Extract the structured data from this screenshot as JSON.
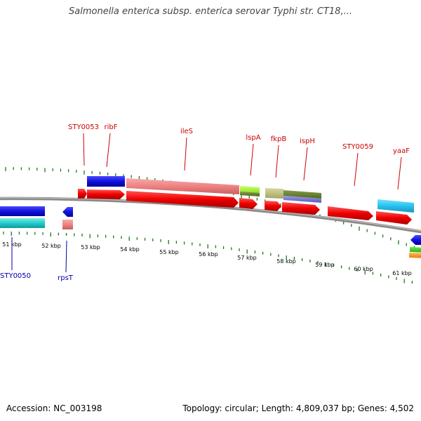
{
  "title": "Salmonella enterica subsp. enterica serovar Typhi str. CT18,...",
  "footer": {
    "accession": "Accession: NC_003198",
    "topology": "Topology: circular; Length: 4,809,037 bp; Genes: 4,502"
  },
  "colors": {
    "forward_cds": "#ee1111",
    "reverse_cds": "#1111dd",
    "backbone": "#888888",
    "tick": "#1a7a1a",
    "forward_label": "#cc0000",
    "reverse_label": "#0000aa"
  },
  "kbp_ticks": [
    "51 kbp",
    "52 kbp",
    "53 kbp",
    "54 kbp",
    "55 kbp",
    "56 kbp",
    "57 kbp",
    "58 kbp",
    "59 kbp",
    "60 kbp",
    "61 kbp"
  ],
  "forward_labels": [
    "STY0053",
    "ribF",
    "ileS",
    "lspA",
    "fkpB",
    "ispH",
    "STY0059",
    "yaaF"
  ],
  "reverse_labels": [
    "STY0050",
    "rpsT"
  ]
}
